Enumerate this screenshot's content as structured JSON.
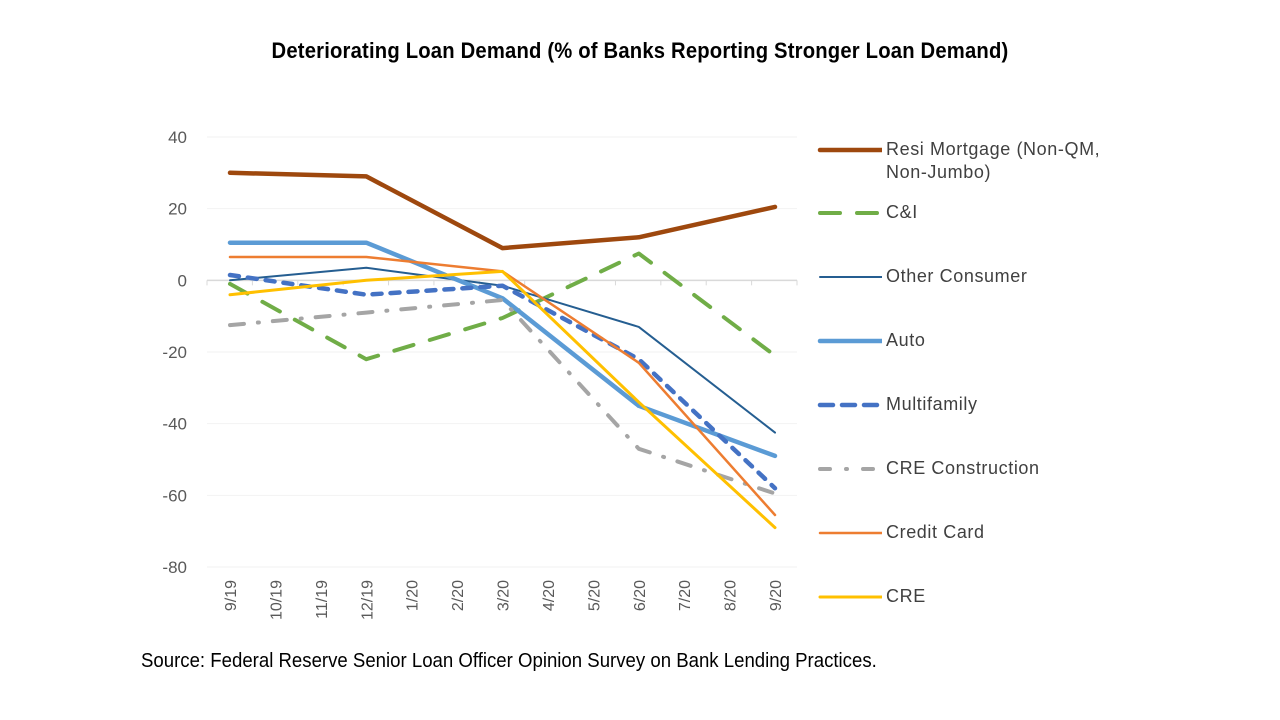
{
  "chart_data": {
    "type": "line",
    "title": "Deteriorating Loan Demand (% of Banks Reporting Stronger Loan Demand)",
    "xlabel": "",
    "ylabel": "",
    "ylim": [
      -80,
      40
    ],
    "yticks": [
      40,
      20,
      0,
      -20,
      -40,
      -60,
      -80
    ],
    "x": [
      "9/19",
      "10/19",
      "11/19",
      "12/19",
      "1/20",
      "2/20",
      "3/20",
      "4/20",
      "5/20",
      "6/20",
      "7/20",
      "8/20",
      "9/20"
    ],
    "grid": true,
    "legend_position": "right",
    "series": [
      {
        "name": "Resi Mortgage (Non-QM, Non-Jumbo)",
        "color": "#9E480E",
        "style": "solid-thick",
        "points": [
          [
            0,
            30
          ],
          [
            3,
            29
          ],
          [
            6,
            9
          ],
          [
            9,
            12
          ],
          [
            12,
            20.5
          ]
        ]
      },
      {
        "name": "C&I",
        "color": "#70AD47",
        "style": "dash-long",
        "points": [
          [
            0,
            -1
          ],
          [
            3,
            -22
          ],
          [
            6,
            -10.5
          ],
          [
            9,
            7.5
          ],
          [
            12,
            -21
          ]
        ]
      },
      {
        "name": "Other Consumer",
        "color": "#255E91",
        "style": "solid-thin",
        "points": [
          [
            0,
            0
          ],
          [
            3,
            3.5
          ],
          [
            6,
            -1.5
          ],
          [
            9,
            -13
          ],
          [
            12,
            -42.5
          ]
        ]
      },
      {
        "name": "Auto",
        "color": "#5B9BD5",
        "style": "solid-thick",
        "points": [
          [
            0,
            10.5
          ],
          [
            3,
            10.5
          ],
          [
            6,
            -5
          ],
          [
            9,
            -35
          ],
          [
            12,
            -49
          ]
        ]
      },
      {
        "name": "Multifamily",
        "color": "#4472C4",
        "style": "dash-round",
        "points": [
          [
            0,
            1.5
          ],
          [
            3,
            -4
          ],
          [
            6,
            -1.5
          ],
          [
            9,
            -22
          ],
          [
            12,
            -58
          ]
        ]
      },
      {
        "name": "CRE Construction",
        "color": "#A5A5A5",
        "style": "dash-dot",
        "points": [
          [
            0,
            -12.5
          ],
          [
            3,
            -9
          ],
          [
            6,
            -5.5
          ],
          [
            9,
            -47
          ],
          [
            12,
            -59.5
          ]
        ]
      },
      {
        "name": "Credit Card",
        "color": "#ED7D31",
        "style": "solid-medium",
        "points": [
          [
            0,
            6.5
          ],
          [
            3,
            6.5
          ],
          [
            6,
            2.5
          ],
          [
            9,
            -23
          ],
          [
            12,
            -65.5
          ]
        ]
      },
      {
        "name": "CRE",
        "color": "#FFC000",
        "style": "solid-medium-thick",
        "points": [
          [
            0,
            -4
          ],
          [
            3,
            0
          ],
          [
            6,
            2.5
          ],
          [
            9,
            -34
          ],
          [
            12,
            -69
          ]
        ]
      }
    ],
    "source": "Source: Federal Reserve Senior Loan Officer Opinion Survey on Bank Lending Practices."
  }
}
